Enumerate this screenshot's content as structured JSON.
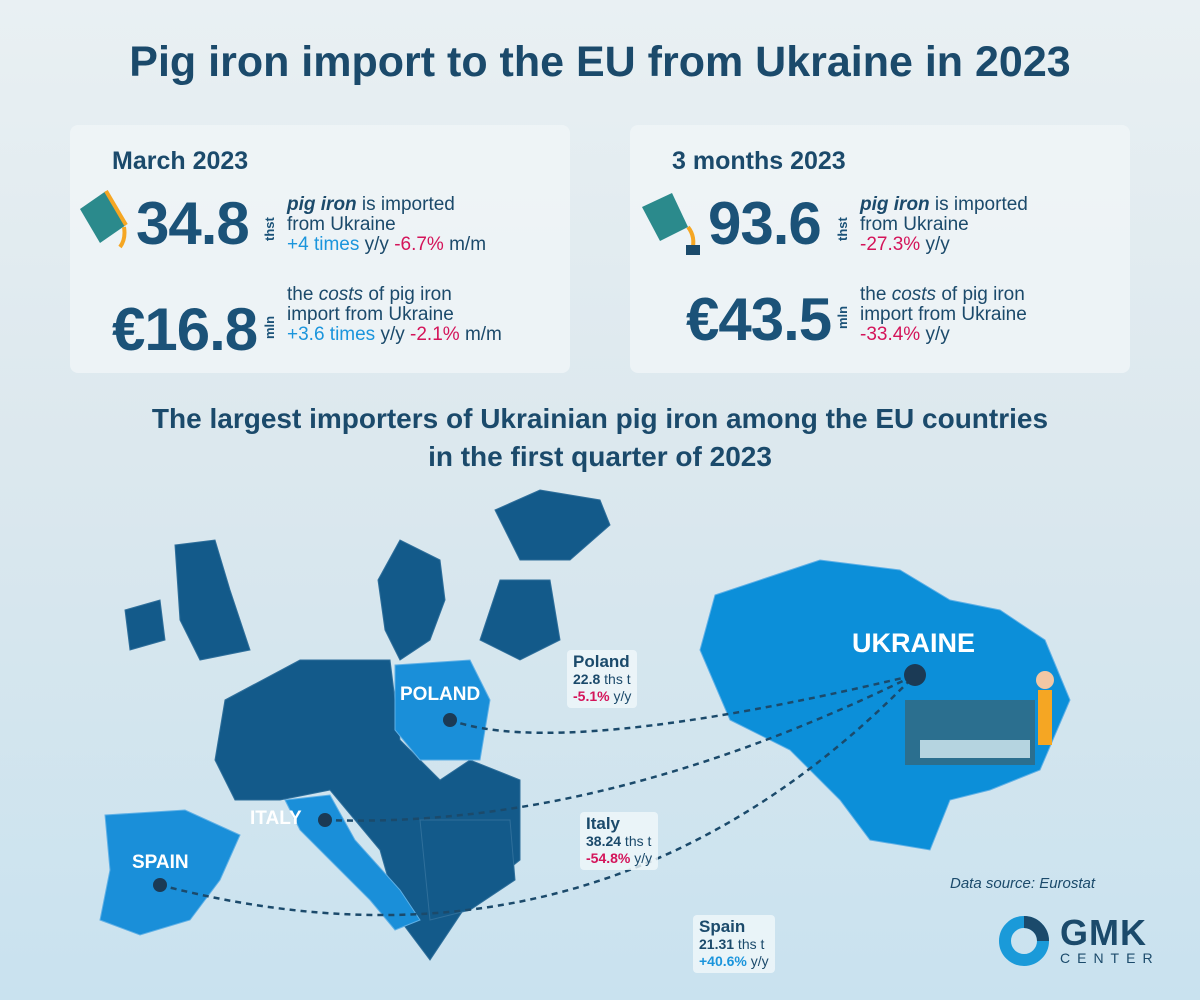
{
  "title": "Pig iron import to the EU from Ukraine in 2023",
  "march": {
    "heading": "March 2023",
    "volume": {
      "value": "34.8",
      "unit": "thst",
      "line1_em": "pig iron",
      "line1_rest": " is imported",
      "line2": "from Ukraine",
      "yy": "+4 times",
      "yy_label": " y/y ",
      "mm": "-6.7%",
      "mm_label": " m/m"
    },
    "cost": {
      "value": "€16.8",
      "unit": "mln",
      "line1_a": "the ",
      "line1_em": "costs",
      "line1_b": " of pig iron",
      "line2": "import from Ukraine",
      "yy": "+3.6 times",
      "yy_label": " y/y ",
      "mm": "-2.1%",
      "mm_label": " m/m"
    }
  },
  "three_months": {
    "heading": "3 months 2023",
    "volume": {
      "value": "93.6",
      "unit": "thst",
      "line1_em": "pig iron",
      "line1_rest": " is imported",
      "line2": "from Ukraine",
      "yy": "-27.3%",
      "yy_label": " y/y"
    },
    "cost": {
      "value": "€43.5",
      "unit": "mln",
      "line1_a": "the ",
      "line1_em": "costs",
      "line1_b": " of pig iron",
      "line2": "import from Ukraine",
      "yy": "-33.4%",
      "yy_label": " y/y"
    }
  },
  "subtitle": {
    "line1": "The largest importers of Ukrainian pig iron among the EU countries",
    "line2": "in the first quarter of 2023"
  },
  "map": {
    "ukraine": "UKRAINE",
    "poland": "POLAND",
    "italy": "ITALY",
    "spain": "SPAIN",
    "colors": {
      "europe": "#135a8a",
      "highlight": "#1a8fd9",
      "ukraine": "#0c8fd9"
    }
  },
  "importers": [
    {
      "country": "Poland",
      "volume": "22.8",
      "unit": " ths t",
      "change": "-5.1%",
      "change_label": " y/y"
    },
    {
      "country": "Italy",
      "volume": "38.24",
      "unit": " ths t",
      "change": "-54.8%",
      "change_label": " y/y"
    },
    {
      "country": "Spain",
      "volume": "21.31",
      "unit": " ths t",
      "change": "+40.6%",
      "change_label": " y/y"
    }
  ],
  "source": "Data source: Eurostat",
  "logo": {
    "line1": "GMK",
    "line2": "CENTER"
  }
}
